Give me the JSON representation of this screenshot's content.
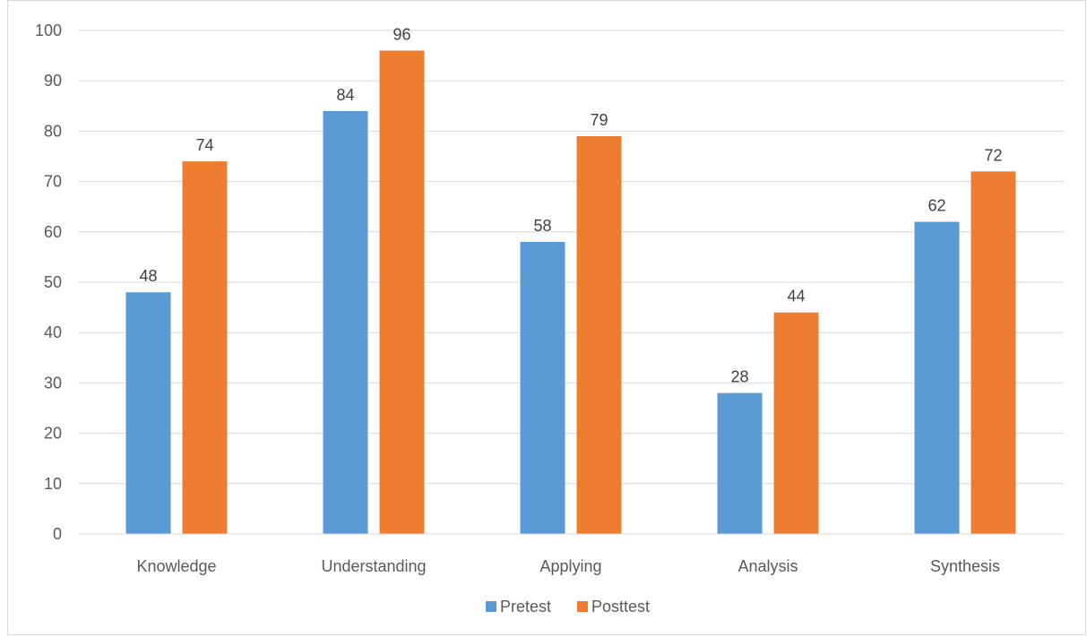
{
  "chart_data": {
    "type": "bar",
    "title": "",
    "xlabel": "",
    "ylabel": "",
    "categories": [
      "Knowledge",
      "Understanding",
      "Applying",
      "Analysis",
      "Synthesis"
    ],
    "series": [
      {
        "name": "Pretest",
        "values": [
          48,
          84,
          58,
          28,
          62
        ],
        "color": "#5B9BD5"
      },
      {
        "name": "Posttest",
        "values": [
          74,
          96,
          79,
          44,
          72
        ],
        "color": "#ED7D31"
      }
    ],
    "ylim": [
      0,
      100
    ],
    "yticks": [
      0,
      10,
      20,
      30,
      40,
      50,
      60,
      70,
      80,
      90,
      100
    ],
    "grid": true,
    "legend_position": "bottom",
    "data_labels": true,
    "gridline_color": "#d9d9d9",
    "axis_color": "#d9d9d9"
  }
}
